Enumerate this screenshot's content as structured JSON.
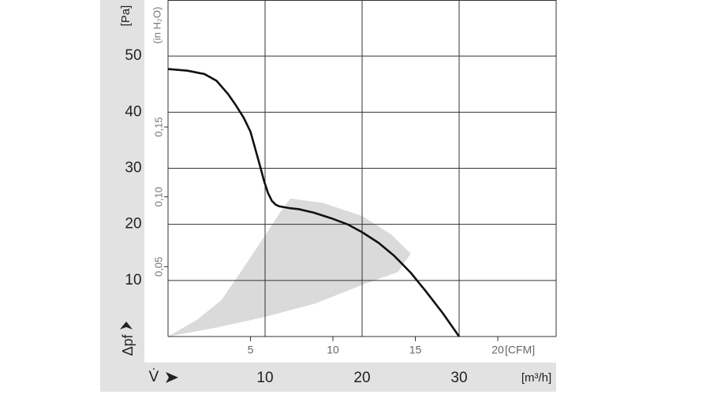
{
  "chart_data": {
    "type": "line",
    "y_label": "[Pa]",
    "y2_label": "(in H₂O)",
    "y_symbol": "Δpf",
    "x_symbol": "V̇",
    "x_label": "[m³/h]",
    "x2_label": "[CFM]",
    "xlim": [
      0,
      40
    ],
    "xticks": [
      10,
      20,
      30
    ],
    "ylim": [
      0,
      60
    ],
    "yticks": [
      10,
      20,
      30,
      40,
      50
    ],
    "x2lim": [
      0,
      23.54
    ],
    "x2ticks": [
      5,
      10,
      15,
      20
    ],
    "y2lim": [
      0,
      0.2409
    ],
    "y2ticks": [
      {
        "value": 0.05,
        "label": "0,05"
      },
      {
        "value": 0.1,
        "label": "0,10"
      },
      {
        "value": 0.15,
        "label": "0,15"
      }
    ],
    "grid": true,
    "band": {
      "color": "#dadada",
      "x": [
        0,
        3,
        5.5,
        7.8,
        9.8,
        11.5,
        12.6,
        16,
        20,
        23,
        25,
        23.7,
        20,
        15.2,
        10,
        5,
        0
      ],
      "y": [
        0,
        3,
        6.5,
        12.3,
        17.5,
        22,
        24.6,
        23.8,
        21.5,
        18.2,
        14.8,
        11.5,
        9.2,
        5.9,
        3.5,
        1.6,
        0
      ]
    },
    "series": [
      {
        "color": "#111111",
        "x": [
          0,
          2,
          3.75,
          5,
          6.2,
          7,
          7.8,
          8.5,
          9,
          9.5,
          9.9,
          10.3,
          10.7,
          11.1,
          11.5,
          12.5,
          13.5,
          15,
          16.8,
          18.5,
          20,
          21.7,
          23.3,
          25,
          26.6,
          28.3,
          30
        ],
        "y": [
          47.7,
          47.4,
          46.8,
          45.6,
          43.2,
          41.2,
          39,
          36.5,
          33.4,
          30.3,
          27.7,
          25.6,
          24.2,
          23.5,
          23.2,
          22.9,
          22.7,
          22.1,
          21.1,
          20,
          18.6,
          16.7,
          14.4,
          11.4,
          8,
          4.2,
          0
        ]
      }
    ]
  }
}
